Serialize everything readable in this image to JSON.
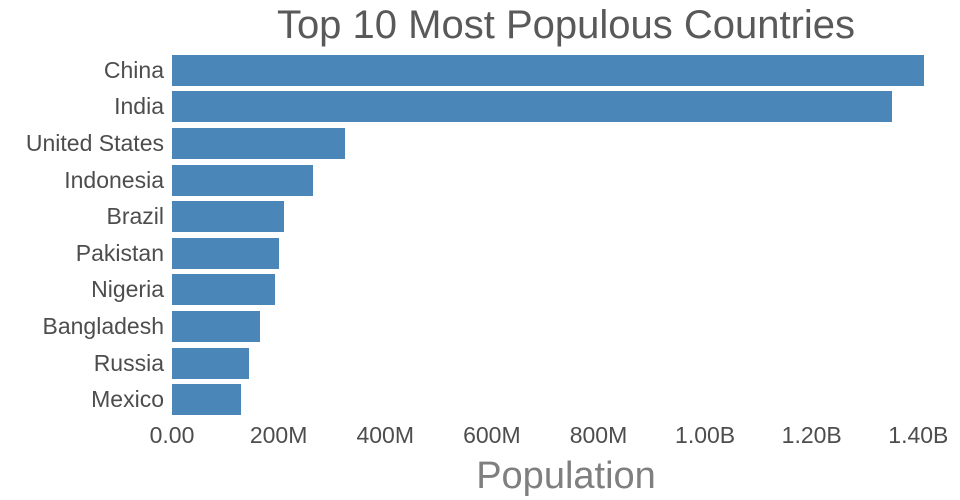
{
  "chart_data": {
    "type": "bar",
    "orientation": "horizontal",
    "title": "Top 10 Most Populous Countries",
    "xlabel": "Population",
    "ylabel": "",
    "bar_color": "#4a86b8",
    "xlim": [
      0,
      1450000000
    ],
    "grid": false,
    "legend": false,
    "categories": [
      "China",
      "India",
      "United States",
      "Indonesia",
      "Brazil",
      "Pakistan",
      "Nigeria",
      "Bangladesh",
      "Russia",
      "Mexico"
    ],
    "values": [
      1410000000,
      1350000000,
      325000000,
      264000000,
      211000000,
      201000000,
      194000000,
      166000000,
      145000000,
      129000000
    ],
    "x_ticks": [
      {
        "value": 0,
        "label": "0.00"
      },
      {
        "value": 200000000,
        "label": "200M"
      },
      {
        "value": 400000000,
        "label": "400M"
      },
      {
        "value": 600000000,
        "label": "600M"
      },
      {
        "value": 800000000,
        "label": "800M"
      },
      {
        "value": 1000000000,
        "label": "1.00B"
      },
      {
        "value": 1200000000,
        "label": "1.20B"
      },
      {
        "value": 1400000000,
        "label": "1.40B"
      }
    ]
  }
}
